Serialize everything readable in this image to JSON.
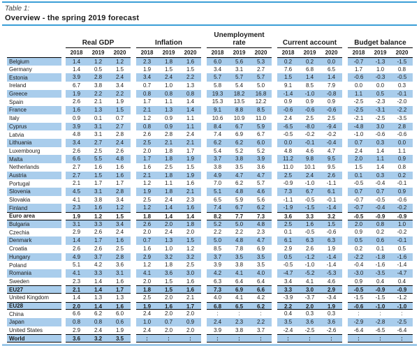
{
  "title": {
    "label": "Table 1:",
    "subtitle": "Overview - the spring 2019 forecast"
  },
  "na_symbol": ":",
  "colors": {
    "stripe_blue": "#a9cdec",
    "rule_blue": "#3a9ed6",
    "rule_bottom_blue": "#9dc8e8",
    "border_black": "#000000"
  },
  "columns": {
    "groups": [
      "Real GDP",
      "Inflation",
      "Unemployment rate",
      "Current account",
      "Budget balance"
    ],
    "years": [
      "2018",
      "2019",
      "2020"
    ]
  },
  "rows": [
    {
      "label": "Belgium",
      "shade": true,
      "agg": false,
      "v": [
        "1.4",
        "1.2",
        "1.2",
        "2.3",
        "1.8",
        "1.6",
        "6.0",
        "5.6",
        "5.3",
        "0.2",
        "0.2",
        "0.0",
        "-0.7",
        "-1.3",
        "-1.5"
      ]
    },
    {
      "label": "Germany",
      "shade": false,
      "agg": false,
      "v": [
        "1.4",
        "0.5",
        "1.5",
        "1.9",
        "1.5",
        "1.5",
        "3.4",
        "3.1",
        "2.7",
        "7.6",
        "6.8",
        "6.5",
        "1.7",
        "1.0",
        "0.8"
      ]
    },
    {
      "label": "Estonia",
      "shade": true,
      "agg": false,
      "v": [
        "3.9",
        "2.8",
        "2.4",
        "3.4",
        "2.4",
        "2.2",
        "5.7",
        "5.7",
        "5.7",
        "1.5",
        "1.4",
        "1.4",
        "-0.6",
        "-0.3",
        "-0.5"
      ]
    },
    {
      "label": "Ireland",
      "shade": false,
      "agg": false,
      "v": [
        "6.7",
        "3.8",
        "3.4",
        "0.7",
        "1.0",
        "1.3",
        "5.8",
        "5.4",
        "5.0",
        "9.1",
        "8.5",
        "7.9",
        "0.0",
        "0.0",
        "0.3"
      ]
    },
    {
      "label": "Greece",
      "shade": true,
      "agg": false,
      "v": [
        "1.9",
        "2.2",
        "2.2",
        "0.8",
        "0.8",
        "0.8",
        "19.3",
        "18.2",
        "16.8",
        "-1.4",
        "-1.0",
        "-0.8",
        "1.1",
        "0.5",
        "-0.1"
      ]
    },
    {
      "label": "Spain",
      "shade": false,
      "agg": false,
      "v": [
        "2.6",
        "2.1",
        "1.9",
        "1.7",
        "1.1",
        "1.4",
        "15.3",
        "13.5",
        "12.2",
        "0.9",
        "0.9",
        "0.9",
        "-2.5",
        "-2.3",
        "-2.0"
      ]
    },
    {
      "label": "France",
      "shade": true,
      "agg": false,
      "v": [
        "1.6",
        "1.3",
        "1.5",
        "2.1",
        "1.3",
        "1.4",
        "9.1",
        "8.8",
        "8.5",
        "-0.6",
        "-0.6",
        "-0.6",
        "-2.5",
        "-3.1",
        "-2.2"
      ]
    },
    {
      "label": "Italy",
      "shade": false,
      "agg": false,
      "v": [
        "0.9",
        "0.1",
        "0.7",
        "1.2",
        "0.9",
        "1.1",
        "10.6",
        "10.9",
        "11.0",
        "2.4",
        "2.5",
        "2.5",
        "-2.1",
        "-2.5",
        "-3.5"
      ]
    },
    {
      "label": "Cyprus",
      "shade": true,
      "agg": false,
      "v": [
        "3.9",
        "3.1",
        "2.7",
        "0.8",
        "0.9",
        "1.1",
        "8.4",
        "6.7",
        "5.9",
        "-6.5",
        "-8.0",
        "-9.4",
        "-4.8",
        "3.0",
        "2.8"
      ]
    },
    {
      "label": "Latvia",
      "shade": false,
      "agg": false,
      "v": [
        "4.8",
        "3.1",
        "2.8",
        "2.6",
        "2.8",
        "2.4",
        "7.4",
        "6.9",
        "6.7",
        "-0.5",
        "-0.2",
        "-0.2",
        "-1.0",
        "-0.6",
        "-0.6"
      ]
    },
    {
      "label": "Lithuania",
      "shade": true,
      "agg": false,
      "v": [
        "3.4",
        "2.7",
        "2.4",
        "2.5",
        "2.1",
        "2.1",
        "6.2",
        "6.2",
        "6.0",
        "0.0",
        "-0.1",
        "-0.4",
        "0.7",
        "0.3",
        "0.0"
      ]
    },
    {
      "label": "Luxembourg",
      "shade": false,
      "agg": false,
      "v": [
        "2.6",
        "2.5",
        "2.6",
        "2.0",
        "1.8",
        "1.7",
        "5.4",
        "5.2",
        "5.2",
        "4.8",
        "4.6",
        "4.7",
        "2.4",
        "1.4",
        "1.1"
      ]
    },
    {
      "label": "Malta",
      "shade": true,
      "agg": false,
      "v": [
        "6.6",
        "5.5",
        "4.8",
        "1.7",
        "1.8",
        "1.9",
        "3.7",
        "3.8",
        "3.9",
        "11.2",
        "9.8",
        "9.5",
        "2.0",
        "1.1",
        "0.9"
      ]
    },
    {
      "label": "Netherlands",
      "shade": false,
      "agg": false,
      "v": [
        "2.7",
        "1.6",
        "1.6",
        "1.6",
        "2.5",
        "1.5",
        "3.8",
        "3.5",
        "3.6",
        "11.0",
        "10.1",
        "9.5",
        "1.5",
        "1.4",
        "0.8"
      ]
    },
    {
      "label": "Austria",
      "shade": true,
      "agg": false,
      "v": [
        "2.7",
        "1.5",
        "1.6",
        "2.1",
        "1.8",
        "1.9",
        "4.9",
        "4.7",
        "4.7",
        "2.5",
        "2.4",
        "2.6",
        "0.1",
        "0.3",
        "0.2"
      ]
    },
    {
      "label": "Portugal",
      "shade": false,
      "agg": false,
      "v": [
        "2.1",
        "1.7",
        "1.7",
        "1.2",
        "1.1",
        "1.6",
        "7.0",
        "6.2",
        "5.7",
        "-0.9",
        "-1.0",
        "-1.1",
        "-0.5",
        "-0.4",
        "-0.1"
      ]
    },
    {
      "label": "Slovenia",
      "shade": true,
      "agg": false,
      "v": [
        "4.5",
        "3.1",
        "2.8",
        "1.9",
        "1.8",
        "2.1",
        "5.1",
        "4.8",
        "4.6",
        "7.3",
        "6.7",
        "6.1",
        "0.7",
        "0.7",
        "0.9"
      ]
    },
    {
      "label": "Slovakia",
      "shade": false,
      "agg": false,
      "v": [
        "4.1",
        "3.8",
        "3.4",
        "2.5",
        "2.4",
        "2.3",
        "6.5",
        "5.9",
        "5.6",
        "-1.1",
        "-0.5",
        "-0.1",
        "-0.7",
        "-0.5",
        "-0.6"
      ]
    },
    {
      "label": "Finland",
      "shade": true,
      "agg": false,
      "v": [
        "2.3",
        "1.6",
        "1.2",
        "1.2",
        "1.4",
        "1.6",
        "7.4",
        "6.7",
        "6.2",
        "-1.9",
        "-1.5",
        "-1.4",
        "-0.7",
        "-0.4",
        "-0.2"
      ]
    },
    {
      "label": "Euro area",
      "shade": false,
      "agg": true,
      "v": [
        "1.9",
        "1.2",
        "1.5",
        "1.8",
        "1.4",
        "1.4",
        "8.2",
        "7.7",
        "7.3",
        "3.6",
        "3.3",
        "3.2",
        "-0.5",
        "-0.9",
        "-0.9"
      ]
    },
    {
      "label": "Bulgaria",
      "shade": true,
      "agg": false,
      "v": [
        "3.1",
        "3.3",
        "3.4",
        "2.6",
        "2.0",
        "1.8",
        "5.2",
        "5.0",
        "4.8",
        "2.5",
        "1.6",
        "1.5",
        "2.0",
        "0.8",
        "1.0"
      ]
    },
    {
      "label": "Czechia",
      "shade": false,
      "agg": false,
      "v": [
        "2.9",
        "2.6",
        "2.4",
        "2.0",
        "2.4",
        "2.0",
        "2.2",
        "2.2",
        "2.3",
        "0.1",
        "-0.5",
        "-0.6",
        "0.9",
        "0.2",
        "-0.2"
      ]
    },
    {
      "label": "Denmark",
      "shade": true,
      "agg": false,
      "v": [
        "1.4",
        "1.7",
        "1.6",
        "0.7",
        "1.3",
        "1.5",
        "5.0",
        "4.8",
        "4.7",
        "6.1",
        "6.3",
        "6.3",
        "0.5",
        "0.6",
        "-0.1"
      ]
    },
    {
      "label": "Croatia",
      "shade": false,
      "agg": false,
      "v": [
        "2.6",
        "2.6",
        "2.5",
        "1.6",
        "1.0",
        "1.2",
        "8.5",
        "7.8",
        "6.9",
        "2.9",
        "2.6",
        "1.9",
        "0.2",
        "0.1",
        "0.5"
      ]
    },
    {
      "label": "Hungary",
      "shade": true,
      "agg": false,
      "v": [
        "4.9",
        "3.7",
        "2.8",
        "2.9",
        "3.2",
        "3.2",
        "3.7",
        "3.5",
        "3.5",
        "0.5",
        "-1.2",
        "-1.4",
        "-2.2",
        "-1.8",
        "-1.6"
      ]
    },
    {
      "label": "Poland",
      "shade": false,
      "agg": false,
      "v": [
        "5.1",
        "4.2",
        "3.6",
        "1.2",
        "1.8",
        "2.5",
        "3.9",
        "3.8",
        "3.5",
        "-0.5",
        "-1.0",
        "-1.4",
        "-0.4",
        "-1.6",
        "-1.4"
      ]
    },
    {
      "label": "Romania",
      "shade": true,
      "agg": false,
      "v": [
        "4.1",
        "3.3",
        "3.1",
        "4.1",
        "3.6",
        "3.0",
        "4.2",
        "4.1",
        "4.0",
        "-4.7",
        "-5.2",
        "-5.3",
        "-3.0",
        "-3.5",
        "-4.7"
      ]
    },
    {
      "label": "Sweden",
      "shade": false,
      "agg": false,
      "v": [
        "2.3",
        "1.4",
        "1.6",
        "2.0",
        "1.5",
        "1.6",
        "6.3",
        "6.4",
        "6.4",
        "3.4",
        "4.1",
        "4.6",
        "0.9",
        "0.4",
        "0.4"
      ]
    },
    {
      "label": "EU27",
      "shade": true,
      "agg": true,
      "v": [
        "2.1",
        "1.4",
        "1.7",
        "1.8",
        "1.5",
        "1.6",
        "7.3",
        "6.9",
        "6.6",
        "3.3",
        "3.0",
        "2.9",
        "-0.5",
        "-0.9",
        "-0.9"
      ]
    },
    {
      "label": "United Kingdom",
      "shade": false,
      "agg": false,
      "v": [
        "1.4",
        "1.3",
        "1.3",
        "2.5",
        "2.0",
        "2.1",
        "4.0",
        "4.1",
        "4.2",
        "-3.9",
        "-3.7",
        "-3.4",
        "-1.5",
        "-1.5",
        "-1.2"
      ]
    },
    {
      "label": "EU28",
      "shade": true,
      "agg": true,
      "v": [
        "2.0",
        "1.4",
        "1.6",
        "1.9",
        "1.6",
        "1.7",
        "6.8",
        "6.5",
        "6.2",
        "2.2",
        "2.0",
        "1.9",
        "-0.6",
        "-1.0",
        "-1.0"
      ]
    },
    {
      "label": "China",
      "shade": false,
      "agg": false,
      "v": [
        "6.6",
        "6.2",
        "6.0",
        "2.4",
        "2.0",
        "2.0",
        ":",
        ":",
        ":",
        "0.4",
        "0.3",
        "0.3",
        ":",
        ":",
        ":"
      ]
    },
    {
      "label": "Japan",
      "shade": true,
      "agg": false,
      "v": [
        "0.8",
        "0.8",
        "0.6",
        "1.0",
        "0.7",
        "0.9",
        "2.4",
        "2.3",
        "2.2",
        "3.5",
        "3.6",
        "3.6",
        "-2.9",
        "-2.8",
        "-2.5"
      ]
    },
    {
      "label": "United States",
      "shade": false,
      "agg": false,
      "v": [
        "2.9",
        "2.4",
        "1.9",
        "2.4",
        "2.0",
        "2.0",
        "3.9",
        "3.8",
        "3.7",
        "-2.4",
        "-2.5",
        "-2.6",
        "-6.4",
        "-6.5",
        "-6.4"
      ]
    },
    {
      "label": "World",
      "shade": true,
      "agg": true,
      "v": [
        "3.6",
        "3.2",
        "3.5",
        ":",
        ":",
        ":",
        ":",
        ":",
        ":",
        ":",
        ":",
        ":",
        ":",
        ":",
        ":"
      ]
    }
  ]
}
